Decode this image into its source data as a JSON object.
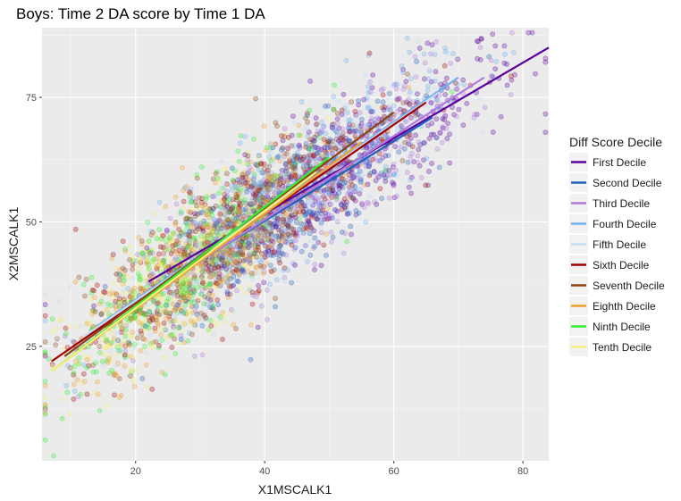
{
  "chart_data": {
    "type": "scatter",
    "title": "Boys: Time 2 DA score by Time 1 DA",
    "xlabel": "X1MSCALK1",
    "ylabel": "X2MSCALK1",
    "xlim": [
      5.5,
      84
    ],
    "ylim": [
      2,
      89
    ],
    "x_ticks": [
      20,
      40,
      60,
      80
    ],
    "y_ticks": [
      25,
      50,
      75
    ],
    "grid": true,
    "legend": {
      "title": "Diff Score Decile",
      "position": "right"
    },
    "series": [
      {
        "name": "First Decile",
        "color": "#5b009f",
        "fit": {
          "x": [
            22,
            84
          ],
          "y": [
            38,
            85
          ]
        }
      },
      {
        "name": "Second Decile",
        "color": "#1f5fbf",
        "fit": {
          "x": [
            21,
            66
          ],
          "y": [
            35,
            71
          ]
        }
      },
      {
        "name": "Third Decile",
        "color": "#b07ae0",
        "fit": {
          "x": [
            18,
            74
          ],
          "y": [
            32,
            79
          ]
        }
      },
      {
        "name": "Fourth Decile",
        "color": "#6fb0f0",
        "fit": {
          "x": [
            14,
            70
          ],
          "y": [
            29,
            79
          ]
        }
      },
      {
        "name": "Fifth Decile",
        "color": "#c6ddf5",
        "fit": {
          "x": [
            12,
            67
          ],
          "y": [
            27,
            76
          ]
        }
      },
      {
        "name": "Sixth Decile",
        "color": "#a00000",
        "fit": {
          "x": [
            7,
            65
          ],
          "y": [
            22,
            74
          ]
        }
      },
      {
        "name": "Seventh Decile",
        "color": "#8b4513",
        "fit": {
          "x": [
            9,
            60
          ],
          "y": [
            23,
            72
          ]
        }
      },
      {
        "name": "Eighth Decile",
        "color": "#f0a030",
        "fit": {
          "x": [
            8,
            55
          ],
          "y": [
            21,
            66
          ]
        }
      },
      {
        "name": "Ninth Decile",
        "color": "#33ee33",
        "fit": {
          "x": [
            7,
            50
          ],
          "y": [
            20,
            63
          ]
        }
      },
      {
        "name": "Tenth Decile",
        "color": "#f5f07a",
        "fit": {
          "x": [
            7,
            48
          ],
          "y": [
            20,
            60
          ]
        }
      }
    ],
    "point_cloud": {
      "x_center": 35,
      "x_sd": 11,
      "slope": 0.84,
      "intercept": 15,
      "noise_sd": 6.5,
      "count_per_series": 380
    }
  }
}
